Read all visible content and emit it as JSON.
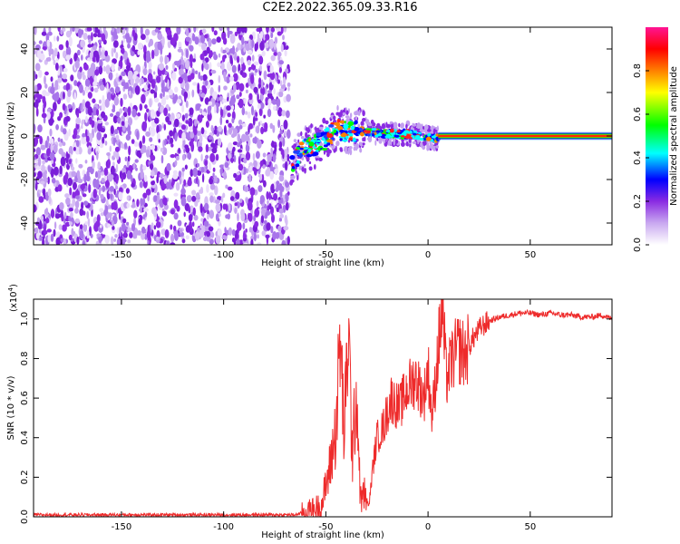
{
  "title": "C2E2.2022.365.09.33.R16",
  "chart_data": [
    {
      "type": "heatmap",
      "xlabel": "Height of straight line (km)",
      "ylabel": "Frequency (Hz)",
      "xlim": [
        -193,
        90
      ],
      "ylim": [
        -50,
        50
      ],
      "x_ticks": [
        -150,
        -100,
        -50,
        0,
        50
      ],
      "y_ticks": [
        -40,
        -20,
        0,
        20,
        40
      ],
      "colorbar": {
        "label": "Normalized spectral amplitude",
        "range": [
          0.0,
          1.0
        ],
        "ticks": [
          "0.0",
          "0.2",
          "0.4",
          "0.6",
          "0.8"
        ],
        "colormap": [
          "#ffffff",
          "#c9a8f0",
          "#8a2be2",
          "#0000ff",
          "#00ffff",
          "#00ff00",
          "#ffff00",
          "#ff8000",
          "#ff0000",
          "#ff1493"
        ]
      },
      "regions": [
        {
          "x_range": [
            -193,
            -68
          ],
          "description": "broadband noise, amplitude 0.1-0.3 across all frequencies"
        },
        {
          "x_range": [
            -68,
            5
          ],
          "frequency_track": [
            [
              -67,
              -12
            ],
            [
              -60,
              -6
            ],
            [
              -52,
              -3
            ],
            [
              -45,
              3
            ],
            [
              -38,
              2
            ],
            [
              -30,
              2
            ],
            [
              -20,
              1
            ],
            [
              -10,
              1
            ],
            [
              0,
              -1
            ],
            [
              5,
              -1
            ]
          ]
        },
        {
          "x_range": [
            5,
            90
          ],
          "frequency_track": [
            [
              5,
              0
            ],
            [
              90,
              0
            ]
          ],
          "amplitude": 1.0
        }
      ]
    },
    {
      "type": "line",
      "xlabel": "Height of straight line (km)",
      "ylabel": "SNR (10 * v/v)",
      "y_multiplier": "(x10",
      "y_multiplier_exp": "4",
      "xlim": [
        -193,
        90
      ],
      "ylim": [
        0.0,
        1.1
      ],
      "x_ticks": [
        -150,
        -100,
        -50,
        0,
        50
      ],
      "y_ticks": [
        "0.0",
        "0.2",
        "0.4",
        "0.6",
        "0.8",
        "1.0"
      ],
      "series": [
        {
          "color": "#ee2b2b",
          "x": [
            -193,
            -150,
            -100,
            -65,
            -58,
            -52,
            -48,
            -45,
            -43,
            -41,
            -39,
            -37,
            -35,
            -33,
            -31,
            -29,
            -27,
            -25,
            -22,
            -18,
            -14,
            -10,
            -6,
            -2,
            0,
            2,
            5,
            7,
            9,
            12,
            15,
            18,
            22,
            26,
            30,
            35,
            40,
            45,
            50,
            55,
            60,
            65,
            70,
            75,
            80,
            85,
            90
          ],
          "y": [
            0.01,
            0.01,
            0.01,
            0.01,
            0.03,
            0.06,
            0.25,
            0.45,
            0.9,
            0.4,
            0.95,
            0.3,
            0.65,
            0.08,
            0.12,
            0.05,
            0.25,
            0.4,
            0.45,
            0.6,
            0.55,
            0.65,
            0.7,
            0.6,
            0.75,
            0.5,
            0.85,
            1.05,
            0.7,
            0.8,
            0.85,
            0.82,
            0.9,
            0.96,
            0.99,
            1.01,
            1.02,
            1.03,
            1.03,
            1.02,
            1.03,
            1.02,
            1.02,
            1.01,
            1.01,
            1.02,
            1.0
          ]
        }
      ]
    }
  ]
}
